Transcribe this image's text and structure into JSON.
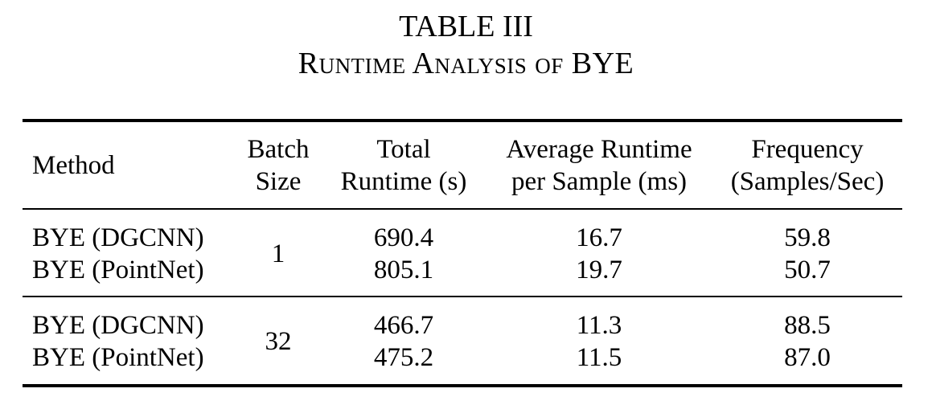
{
  "caption": {
    "label": "TABLE III",
    "title": "Runtime Analysis of BYE"
  },
  "table": {
    "headers": {
      "method": "Method",
      "batch_size_l1": "Batch",
      "batch_size_l2": "Size",
      "total_runtime_l1": "Total",
      "total_runtime_l2": "Runtime (s)",
      "avg_runtime_l1": "Average Runtime",
      "avg_runtime_l2": "per Sample (ms)",
      "frequency_l1": "Frequency",
      "frequency_l2": "(Samples/Sec)"
    },
    "groups": [
      {
        "batch_size": "1",
        "rows": [
          {
            "method": "BYE (DGCNN)",
            "total_runtime": "690.4",
            "avg_runtime": "16.7",
            "frequency": "59.8"
          },
          {
            "method": "BYE (PointNet)",
            "total_runtime": "805.1",
            "avg_runtime": "19.7",
            "frequency": "50.7"
          }
        ]
      },
      {
        "batch_size": "32",
        "rows": [
          {
            "method": "BYE (DGCNN)",
            "total_runtime": "466.7",
            "avg_runtime": "11.3",
            "frequency": "88.5"
          },
          {
            "method": "BYE (PointNet)",
            "total_runtime": "475.2",
            "avg_runtime": "11.5",
            "frequency": "87.0"
          }
        ]
      }
    ]
  }
}
